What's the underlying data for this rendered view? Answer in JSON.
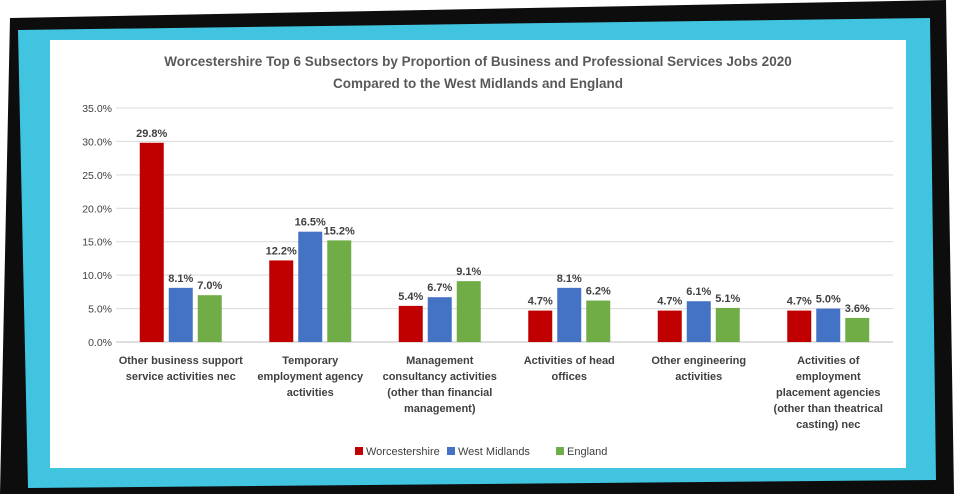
{
  "chart_data": {
    "type": "bar",
    "title": "Worcestershire Top 6 Subsectors by Proportion of Business and Professional Services  Jobs 2020",
    "subtitle": "Compared to the West Midlands and England",
    "xlabel": "",
    "ylabel": "",
    "ylim": [
      0,
      35
    ],
    "yticks": [
      "0.0%",
      "5.0%",
      "10.0%",
      "15.0%",
      "20.0%",
      "25.0%",
      "30.0%",
      "35.0%"
    ],
    "grid": true,
    "legend_position": "bottom",
    "categories": [
      [
        "Other business support",
        "service activities nec"
      ],
      [
        "Temporary",
        "employment agency",
        "activities"
      ],
      [
        "Management",
        "consultancy activities",
        "(other than financial",
        "management)"
      ],
      [
        "Activities of head",
        "offices"
      ],
      [
        "Other engineering",
        "activities"
      ],
      [
        "Activities of",
        "employment",
        "placement agencies",
        "(other than  theatrical",
        "casting) nec"
      ]
    ],
    "series": [
      {
        "name": "Worcestershire",
        "color": "#c00000",
        "values": [
          29.8,
          12.2,
          5.4,
          4.7,
          4.7,
          4.7
        ],
        "labels": [
          "29.8%",
          "12.2%",
          "5.4%",
          "4.7%",
          "4.7%",
          "4.7%"
        ]
      },
      {
        "name": "West Midlands",
        "color": "#4472c4",
        "values": [
          8.1,
          16.5,
          6.7,
          8.1,
          6.1,
          5.0
        ],
        "labels": [
          "8.1%",
          "16.5%",
          "6.7%",
          "8.1%",
          "6.1%",
          "5.0%"
        ]
      },
      {
        "name": "England",
        "color": "#70ad47",
        "values": [
          7.0,
          15.2,
          9.1,
          6.2,
          5.1,
          3.6
        ],
        "labels": [
          "7.0%",
          "15.2%",
          "9.1%",
          "6.2%",
          "5.1%",
          "3.6%"
        ]
      }
    ]
  },
  "frame": {
    "outer_color": "#0d0d0d",
    "inner_color": "#40c4e0",
    "panel_color": "#ffffff"
  }
}
